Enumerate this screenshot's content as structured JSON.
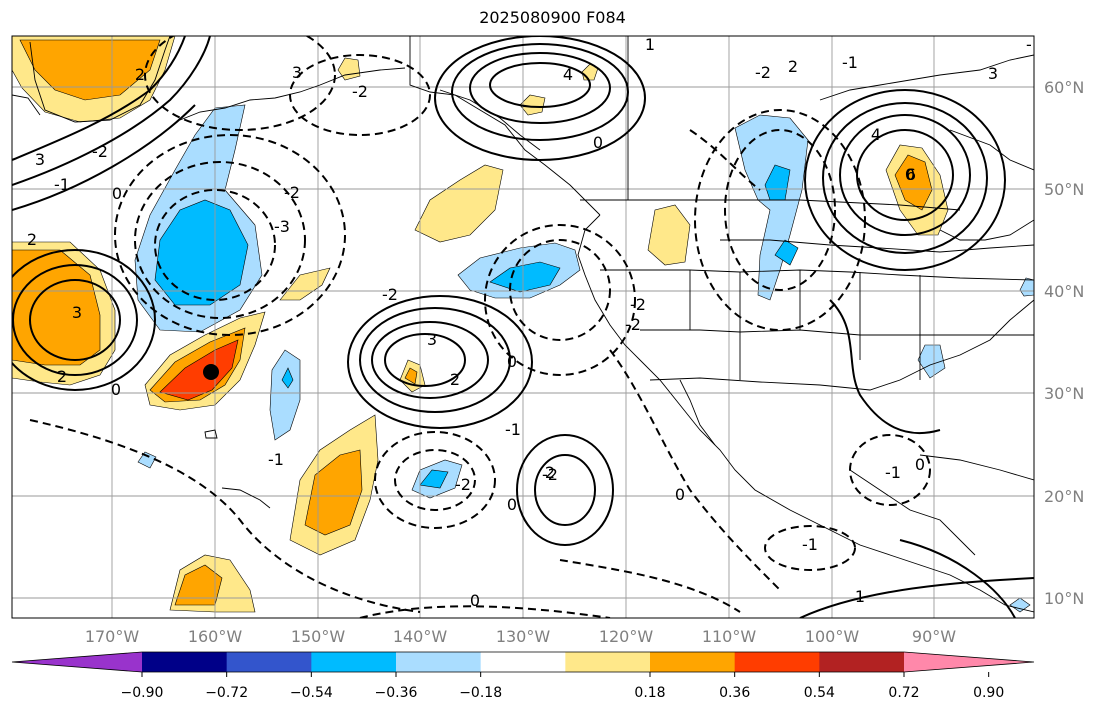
{
  "title": "2025080900 F084",
  "map": {
    "longitude_ticks": [
      "170°W",
      "160°W",
      "150°W",
      "140°W",
      "130°W",
      "120°W",
      "110°W",
      "100°W",
      "90°W"
    ],
    "latitude_ticks": [
      "60°N",
      "50°N",
      "40°N",
      "30°N",
      "20°N",
      "10°N"
    ],
    "gridlines": true,
    "marker": {
      "lon": -160.5,
      "lat": 32.2,
      "color": "#000000"
    }
  },
  "colorbar": {
    "orientation": "horizontal",
    "extend": "both",
    "colors": [
      "#9933cc",
      "#000088",
      "#3355cc",
      "#00bbff",
      "#aaddff",
      "#ffffff",
      "#ffe88a",
      "#ffa500",
      "#ff3d00",
      "#b22222",
      "#ff88aa"
    ],
    "tick_labels": [
      "−0.90",
      "−0.72",
      "−0.54",
      "−0.36",
      "−0.18",
      "0.18",
      "0.36",
      "0.54",
      "0.72",
      "0.90"
    ]
  },
  "contour_labels": [
    {
      "text": "1"
    },
    {
      "text": "3"
    },
    {
      "text": "2"
    },
    {
      "text": "4"
    },
    {
      "text": "3"
    },
    {
      "text": "2"
    },
    {
      "text": "0"
    },
    {
      "text": "-2"
    },
    {
      "text": "-1"
    },
    {
      "text": "-2"
    },
    {
      "text": "4"
    },
    {
      "text": "0"
    },
    {
      "text": "3"
    },
    {
      "text": "-2"
    },
    {
      "text": "-1"
    },
    {
      "text": "0"
    },
    {
      "text": "-2"
    },
    {
      "text": "-3"
    },
    {
      "text": "2"
    },
    {
      "text": "3"
    },
    {
      "text": "2"
    },
    {
      "text": "0"
    },
    {
      "text": "-2"
    },
    {
      "text": "3"
    },
    {
      "text": "2"
    },
    {
      "text": "0"
    },
    {
      "text": "-1"
    },
    {
      "text": "-2"
    },
    {
      "text": "-2"
    },
    {
      "text": "0"
    },
    {
      "text": "-1"
    },
    {
      "text": "2"
    },
    {
      "text": "0"
    },
    {
      "text": "-1"
    },
    {
      "text": "-1"
    },
    {
      "text": "0"
    },
    {
      "text": "-1"
    },
    {
      "text": "1"
    },
    {
      "text": "0"
    },
    {
      "text": "-2"
    },
    {
      "text": "6"
    },
    {
      "text": "-2"
    }
  ]
}
